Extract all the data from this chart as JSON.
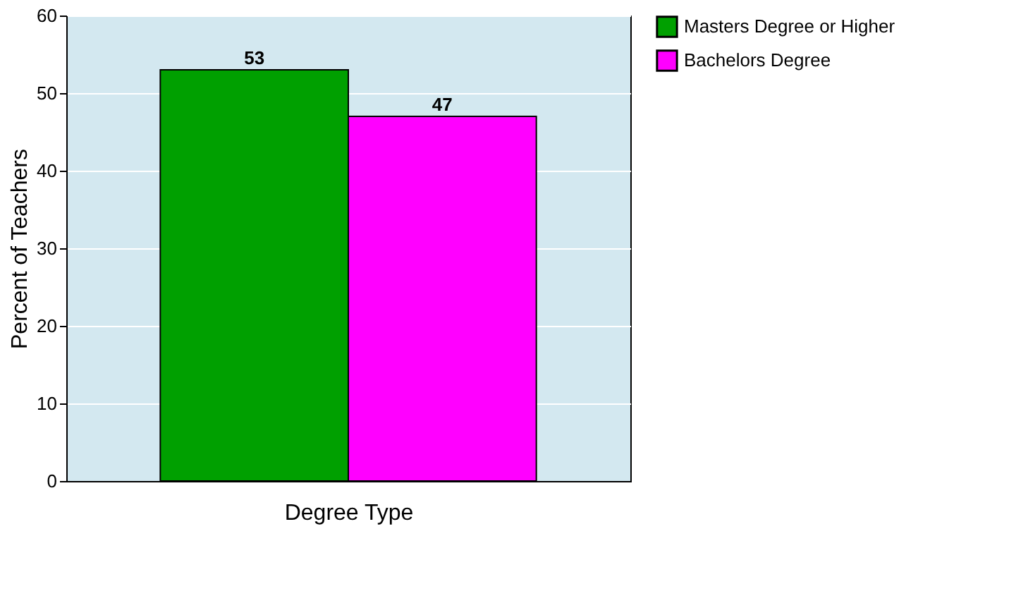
{
  "chart_data": {
    "type": "bar",
    "xlabel": "Degree Type",
    "ylabel": "Percent of Teachers",
    "categories": [
      null
    ],
    "series": [
      {
        "name": "Masters Degree or Higher",
        "color": "#00a000",
        "values": [
          53
        ]
      },
      {
        "name": "Bachelors Degree",
        "color": "#ff00ff",
        "values": [
          47
        ]
      }
    ],
    "ylim": [
      0,
      60
    ],
    "yticks": [
      0,
      10,
      20,
      30,
      40,
      50,
      60
    ],
    "grid": "y",
    "legend": "right",
    "data_labels": true
  }
}
